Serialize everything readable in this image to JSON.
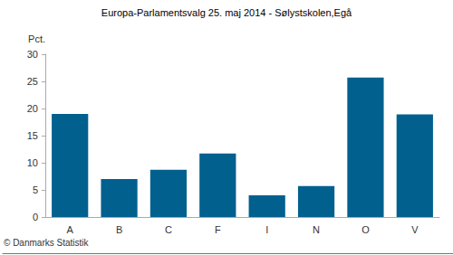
{
  "chart_data": {
    "type": "bar",
    "title": "Europa-Parlamentsvalg 25. maj 2014 - Sølystskolen,Egå",
    "y_label": "Pct.",
    "categories": [
      "A",
      "B",
      "C",
      "F",
      "I",
      "N",
      "O",
      "V"
    ],
    "values": [
      19.0,
      7.0,
      8.7,
      11.7,
      4.0,
      5.7,
      25.7,
      18.9
    ],
    "color": "#02608f",
    "ylim": [
      0,
      30
    ],
    "yticks": [
      0,
      5,
      10,
      15,
      20,
      25,
      30
    ],
    "grid": false,
    "annotations": [
      "© Danmarks Statistik"
    ]
  }
}
